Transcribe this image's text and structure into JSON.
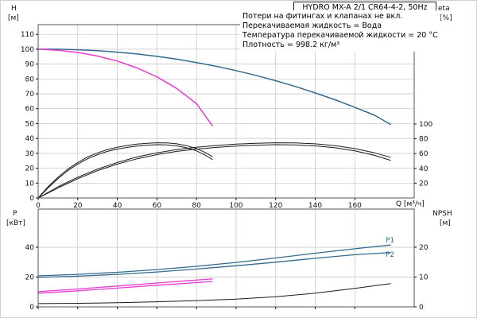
{
  "window": {
    "title": "HYDRO MX-A 2/1 CR64-4-2, 50Hz"
  },
  "notes": [
    "Потери на фитингах и клапанах не вкл.",
    "Перекачиваемая жидкость = Вода",
    "Температура перекачиваемой жидкости = 20 °C",
    "Плотность = 998.2 кг/м³"
  ],
  "labels": {
    "h": "H",
    "h_unit": "[м]",
    "eta": "eta",
    "eta_unit": "[%]",
    "q": "Q [м³/ч]",
    "p": "P",
    "p_unit": "[кВт]",
    "npsh": "NPSH",
    "npsh_unit": "[м]",
    "p1": "P1",
    "p2": "P2"
  },
  "colors": {
    "blue": "#336a8d",
    "magenta": "#e53cd0",
    "black": "#1a1a1a",
    "grid": "#c3c3c3",
    "border": "#555555"
  },
  "chart_data": [
    {
      "id": "hq",
      "type": "line",
      "title": "HYDRO MX-A 2/1 CR64-4-2, 50Hz",
      "xlabel": "Q [м³/ч]",
      "ylabel": "H [м]",
      "y2label": "eta [%]",
      "xlim": [
        0,
        190
      ],
      "ylim": [
        0,
        116.5
      ],
      "y2lim": [
        0,
        234.4
      ],
      "xticks": [
        0,
        20,
        40,
        60,
        80,
        100,
        120,
        140,
        160
      ],
      "yticks": [
        0,
        10,
        20,
        30,
        40,
        50,
        60,
        70,
        80,
        90,
        100,
        110
      ],
      "y2ticks": [
        20,
        40,
        60,
        80,
        100
      ],
      "grid": true,
      "show_x_labels": true,
      "series": [
        {
          "name": "head-2-pumps",
          "color": "blue",
          "axis": "y",
          "width": 1.5,
          "points": [
            [
              0,
              100
            ],
            [
              10,
              100
            ],
            [
              20,
              99.6
            ],
            [
              30,
              99
            ],
            [
              40,
              98
            ],
            [
              50,
              96.8
            ],
            [
              60,
              95.2
            ],
            [
              70,
              93.3
            ],
            [
              80,
              91
            ],
            [
              90,
              88.5
            ],
            [
              100,
              85.6
            ],
            [
              110,
              82.4
            ],
            [
              120,
              78.8
            ],
            [
              130,
              74.9
            ],
            [
              140,
              70.6
            ],
            [
              150,
              66
            ],
            [
              160,
              61
            ],
            [
              170,
              55.6
            ],
            [
              178,
              49.5
            ]
          ]
        },
        {
          "name": "head-1-pump",
          "color": "magenta",
          "axis": "y",
          "width": 1.5,
          "points": [
            [
              0,
              100
            ],
            [
              10,
              99.3
            ],
            [
              20,
              97.8
            ],
            [
              30,
              95.4
            ],
            [
              40,
              92
            ],
            [
              50,
              87.4
            ],
            [
              60,
              81.4
            ],
            [
              70,
              73.6
            ],
            [
              80,
              63.4
            ],
            [
              88,
              48.5
            ]
          ]
        },
        {
          "name": "eta-1-pump-upper",
          "color": "black",
          "axis": "y2",
          "width": 1,
          "points": [
            [
              0,
              0
            ],
            [
              5,
              15
            ],
            [
              10,
              28
            ],
            [
              15,
              39
            ],
            [
              20,
              48
            ],
            [
              25,
              55.5
            ],
            [
              30,
              61
            ],
            [
              35,
              65.5
            ],
            [
              40,
              68.5
            ],
            [
              45,
              71
            ],
            [
              50,
              72.8
            ],
            [
              55,
              74
            ],
            [
              60,
              74.6
            ],
            [
              65,
              74.4
            ],
            [
              70,
              73.2
            ],
            [
              75,
              70.8
            ],
            [
              80,
              66.8
            ],
            [
              84,
              62
            ],
            [
              88,
              56
            ]
          ]
        },
        {
          "name": "eta-1-pump-lower",
          "color": "black",
          "axis": "y2",
          "width": 1,
          "points": [
            [
              0,
              0
            ],
            [
              5,
              13.5
            ],
            [
              10,
              26
            ],
            [
              15,
              37
            ],
            [
              20,
              45.8
            ],
            [
              25,
              53
            ],
            [
              30,
              58.6
            ],
            [
              35,
              63
            ],
            [
              40,
              66
            ],
            [
              45,
              68.4
            ],
            [
              50,
              70.2
            ],
            [
              55,
              71.4
            ],
            [
              60,
              72
            ],
            [
              65,
              71.8
            ],
            [
              70,
              70.4
            ],
            [
              75,
              67.8
            ],
            [
              80,
              63.6
            ],
            [
              84,
              58.6
            ],
            [
              88,
              52
            ]
          ]
        },
        {
          "name": "eta-2-pumps-upper",
          "color": "black",
          "axis": "y2",
          "width": 1,
          "points": [
            [
              0,
              0
            ],
            [
              10,
              15
            ],
            [
              20,
              28
            ],
            [
              30,
              39
            ],
            [
              40,
              48
            ],
            [
              50,
              55.5
            ],
            [
              60,
              61
            ],
            [
              70,
              65.5
            ],
            [
              80,
              68.5
            ],
            [
              90,
              71
            ],
            [
              100,
              72.8
            ],
            [
              110,
              74
            ],
            [
              120,
              74.6
            ],
            [
              130,
              74.4
            ],
            [
              140,
              73.2
            ],
            [
              150,
              70.8
            ],
            [
              160,
              66.8
            ],
            [
              170,
              61
            ],
            [
              178,
              55
            ]
          ]
        },
        {
          "name": "eta-2-pumps-lower",
          "color": "black",
          "axis": "y2",
          "width": 1,
          "points": [
            [
              0,
              0
            ],
            [
              10,
              13.5
            ],
            [
              20,
              26
            ],
            [
              30,
              37
            ],
            [
              40,
              45.8
            ],
            [
              50,
              53
            ],
            [
              60,
              58.6
            ],
            [
              70,
              63
            ],
            [
              80,
              66
            ],
            [
              90,
              68.4
            ],
            [
              100,
              70.2
            ],
            [
              110,
              71.4
            ],
            [
              120,
              72
            ],
            [
              130,
              71.8
            ],
            [
              140,
              70.4
            ],
            [
              150,
              67.8
            ],
            [
              160,
              63.6
            ],
            [
              170,
              57.6
            ],
            [
              178,
              51
            ]
          ]
        }
      ]
    },
    {
      "id": "power",
      "type": "line",
      "title": "",
      "xlabel": "Q [м³/ч]",
      "ylabel": "P [кВт]",
      "y2label": "NPSH [м]",
      "xlim": [
        0,
        190
      ],
      "ylim": [
        0,
        65.6
      ],
      "y2lim": [
        0,
        32.8
      ],
      "xticks": [
        0,
        20,
        40,
        60,
        80,
        100,
        120,
        140,
        160
      ],
      "yticks": [
        0,
        20,
        40
      ],
      "y2ticks": [
        0,
        10,
        20
      ],
      "grid": true,
      "show_x_labels": false,
      "series": [
        {
          "name": "power-P1",
          "color": "blue",
          "axis": "y",
          "width": 1.3,
          "points": [
            [
              0,
              20.8
            ],
            [
              20,
              21.8
            ],
            [
              40,
              23.2
            ],
            [
              60,
              25
            ],
            [
              80,
              27.2
            ],
            [
              100,
              29.8
            ],
            [
              120,
              32.8
            ],
            [
              140,
              36
            ],
            [
              160,
              39
            ],
            [
              178,
              41.5
            ]
          ]
        },
        {
          "name": "power-P2",
          "color": "blue",
          "axis": "y",
          "width": 1.3,
          "points": [
            [
              0,
              19.8
            ],
            [
              20,
              20.6
            ],
            [
              40,
              21.8
            ],
            [
              60,
              23.4
            ],
            [
              80,
              25.4
            ],
            [
              100,
              27.6
            ],
            [
              120,
              30
            ],
            [
              140,
              32.6
            ],
            [
              160,
              35
            ],
            [
              178,
              36.5
            ]
          ]
        },
        {
          "name": "power-1-pump-upper",
          "color": "magenta",
          "axis": "y",
          "width": 1.3,
          "points": [
            [
              0,
              10.2
            ],
            [
              20,
              12
            ],
            [
              40,
              14
            ],
            [
              60,
              16
            ],
            [
              75,
              17.5
            ],
            [
              88,
              18.8
            ]
          ]
        },
        {
          "name": "power-1-pump-lower",
          "color": "magenta",
          "axis": "y",
          "width": 1.3,
          "points": [
            [
              0,
              9.2
            ],
            [
              20,
              10.8
            ],
            [
              40,
              12.6
            ],
            [
              60,
              14.5
            ],
            [
              75,
              15.8
            ],
            [
              88,
              17
            ]
          ]
        },
        {
          "name": "npsh",
          "color": "black",
          "axis": "y2",
          "width": 1,
          "points": [
            [
              0,
              1.1
            ],
            [
              20,
              1.2
            ],
            [
              40,
              1.4
            ],
            [
              60,
              1.7
            ],
            [
              80,
              2.1
            ],
            [
              100,
              2.6
            ],
            [
              120,
              3.4
            ],
            [
              140,
              4.6
            ],
            [
              160,
              6.2
            ],
            [
              178,
              7.8
            ]
          ]
        }
      ]
    }
  ]
}
